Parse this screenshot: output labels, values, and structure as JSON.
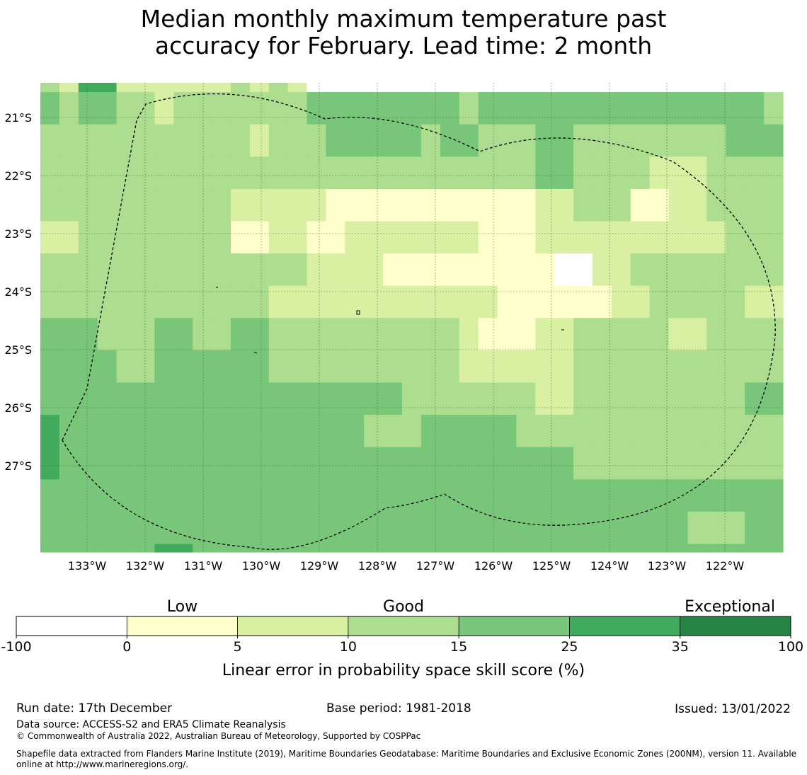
{
  "title": {
    "line1": "Median monthly maximum temperature past",
    "line2": "accuracy for February. Lead time: 2 month"
  },
  "map": {
    "lat_labels": [
      "21°S",
      "22°S",
      "23°S",
      "24°S",
      "25°S",
      "26°S",
      "27°S"
    ],
    "lon_labels": [
      "133°W",
      "132°W",
      "131°W",
      "130°W",
      "129°W",
      "128°W",
      "127°W",
      "126°W",
      "125°W",
      "124°W",
      "123°W",
      "122°W"
    ],
    "grid": [
      [
        3,
        2,
        5,
        5,
        2,
        2,
        2,
        2,
        2,
        2,
        3,
        2,
        3,
        2,
        0,
        0,
        0,
        0,
        0,
        0,
        0,
        0,
        0,
        0,
        0,
        0,
        0,
        0,
        0,
        0,
        0,
        0,
        0,
        0,
        0,
        0,
        0,
        0,
        0
      ],
      [
        4,
        3,
        4,
        4,
        3,
        3,
        2,
        3,
        3,
        3,
        3,
        3,
        3,
        3,
        4,
        4,
        4,
        4,
        4,
        4,
        4,
        4,
        3,
        4,
        4,
        4,
        4,
        4,
        4,
        4,
        4,
        4,
        4,
        4,
        4,
        4,
        4,
        4,
        3
      ],
      [
        3,
        3,
        3,
        3,
        3,
        3,
        3,
        3,
        3,
        3,
        3,
        2,
        3,
        3,
        3,
        4,
        4,
        4,
        4,
        4,
        3,
        4,
        4,
        3,
        3,
        3,
        4,
        4,
        3,
        3,
        3,
        3,
        3,
        3,
        3,
        3,
        4,
        4,
        4
      ],
      [
        3,
        3,
        3,
        3,
        3,
        3,
        3,
        3,
        3,
        3,
        3,
        3,
        3,
        3,
        3,
        3,
        3,
        3,
        3,
        3,
        3,
        3,
        3,
        3,
        3,
        3,
        4,
        4,
        3,
        3,
        3,
        3,
        2,
        2,
        2,
        3,
        3,
        3,
        3
      ],
      [
        3,
        3,
        3,
        3,
        3,
        3,
        3,
        3,
        3,
        3,
        2,
        2,
        2,
        2,
        2,
        1,
        1,
        1,
        1,
        1,
        1,
        1,
        1,
        1,
        1,
        1,
        2,
        2,
        3,
        3,
        3,
        1,
        1,
        2,
        2,
        3,
        3,
        3,
        3
      ],
      [
        2,
        2,
        3,
        3,
        3,
        3,
        3,
        3,
        3,
        3,
        1,
        1,
        2,
        2,
        1,
        1,
        2,
        2,
        2,
        2,
        2,
        2,
        2,
        1,
        1,
        1,
        2,
        2,
        2,
        2,
        2,
        2,
        2,
        2,
        2,
        2,
        3,
        3,
        3
      ],
      [
        3,
        3,
        3,
        3,
        3,
        3,
        3,
        3,
        3,
        3,
        3,
        3,
        3,
        3,
        2,
        2,
        2,
        2,
        1,
        1,
        1,
        1,
        1,
        1,
        1,
        1,
        1,
        0,
        0,
        2,
        2,
        3,
        3,
        3,
        3,
        3,
        3,
        3,
        3
      ],
      [
        3,
        3,
        3,
        3,
        3,
        3,
        3,
        3,
        3,
        3,
        3,
        3,
        2,
        2,
        2,
        2,
        2,
        2,
        2,
        2,
        2,
        2,
        2,
        2,
        1,
        1,
        1,
        1,
        1,
        1,
        2,
        2,
        3,
        3,
        3,
        3,
        3,
        2,
        2
      ],
      [
        4,
        4,
        4,
        3,
        3,
        3,
        4,
        4,
        3,
        3,
        4,
        4,
        3,
        3,
        3,
        3,
        3,
        3,
        3,
        3,
        3,
        3,
        2,
        1,
        1,
        1,
        2,
        2,
        3,
        3,
        3,
        3,
        3,
        2,
        2,
        3,
        3,
        3,
        3
      ],
      [
        4,
        4,
        4,
        4,
        3,
        3,
        4,
        4,
        4,
        4,
        4,
        4,
        3,
        3,
        3,
        3,
        3,
        3,
        3,
        3,
        3,
        3,
        2,
        2,
        2,
        2,
        2,
        2,
        3,
        3,
        3,
        3,
        3,
        3,
        3,
        3,
        3,
        3,
        3
      ],
      [
        4,
        4,
        4,
        4,
        4,
        4,
        4,
        4,
        4,
        4,
        4,
        4,
        4,
        4,
        4,
        4,
        4,
        4,
        4,
        3,
        3,
        3,
        3,
        3,
        3,
        3,
        2,
        2,
        3,
        3,
        3,
        3,
        3,
        3,
        3,
        3,
        3,
        4,
        4
      ],
      [
        5,
        4,
        4,
        4,
        4,
        4,
        4,
        4,
        4,
        4,
        4,
        4,
        4,
        4,
        4,
        4,
        4,
        3,
        3,
        3,
        4,
        4,
        4,
        4,
        4,
        3,
        3,
        3,
        3,
        3,
        3,
        3,
        3,
        3,
        3,
        3,
        3,
        3,
        3
      ],
      [
        5,
        4,
        4,
        4,
        4,
        4,
        4,
        4,
        4,
        4,
        4,
        4,
        4,
        4,
        4,
        4,
        4,
        4,
        4,
        4,
        4,
        4,
        4,
        4,
        4,
        4,
        4,
        4,
        3,
        3,
        3,
        3,
        3,
        3,
        3,
        3,
        3,
        3,
        3
      ],
      [
        4,
        4,
        4,
        4,
        4,
        4,
        4,
        4,
        4,
        4,
        4,
        4,
        4,
        4,
        4,
        4,
        4,
        4,
        4,
        4,
        4,
        4,
        4,
        4,
        4,
        4,
        4,
        4,
        4,
        4,
        4,
        4,
        4,
        4,
        4,
        4,
        4,
        4,
        4
      ],
      [
        4,
        4,
        4,
        4,
        4,
        4,
        4,
        4,
        4,
        4,
        4,
        4,
        4,
        4,
        4,
        4,
        4,
        4,
        4,
        4,
        4,
        4,
        4,
        4,
        4,
        4,
        4,
        4,
        4,
        4,
        4,
        4,
        4,
        4,
        3,
        3,
        3,
        4,
        4
      ],
      [
        4,
        4,
        4,
        4,
        4,
        4,
        5,
        5,
        4,
        4,
        4,
        4,
        4,
        4,
        4,
        4,
        4,
        4,
        4,
        4,
        4,
        4,
        4,
        4,
        4,
        4,
        4,
        4,
        4,
        4,
        4,
        4,
        4,
        4,
        4,
        4,
        4,
        4,
        4
      ]
    ]
  },
  "legend": {
    "colors": [
      "#ffffff",
      "#ffffcc",
      "#d9f0a3",
      "#addd8e",
      "#78c679",
      "#41ab5d",
      "#238443"
    ],
    "categories": [
      {
        "label": "Low",
        "pos": 1.5
      },
      {
        "label": "Good",
        "pos": 3.5
      },
      {
        "label": "Exceptional",
        "pos": 6.45
      }
    ],
    "ticks": [
      "-100",
      "0",
      "5",
      "10",
      "15",
      "25",
      "35",
      "100"
    ],
    "xlabel": "Linear error in probability space skill score (%)"
  },
  "footer": {
    "run_date": "Run date: 17th December",
    "base_period": "Base period: 1981-2018",
    "issued": "Issued: 13/01/2022",
    "data_source": "Data source: ACCESS-S2 and ERA5 Climate Reanalysis",
    "copyright": "© Commonwealth of Australia 2022, Australian Bureau of Meteorology, Supported by COSPPac",
    "shapefile_line1": "Shapefile data extracted from Flanders Marine Institute (2019), Maritime Boundaries Geodatabase: Maritime Boundaries and Exclusive Economic Zones (200NM), version 11. Available",
    "shapefile_line2": "online at http://www.marineregions.org/."
  }
}
